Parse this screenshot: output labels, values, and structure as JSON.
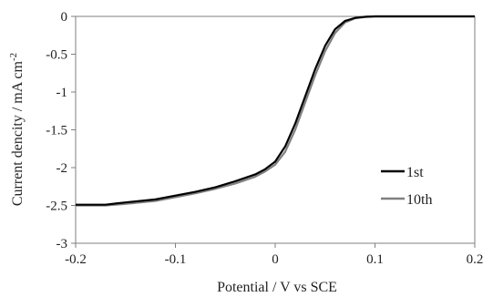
{
  "chart_data": {
    "type": "line",
    "xlabel": "Potential / V vs SCE",
    "ylabel": "Current dencity / mA cm",
    "ylabel_superscript": "-2",
    "xlim": [
      -0.2,
      0.2
    ],
    "ylim": [
      -3,
      0
    ],
    "x_ticks": [
      "-0.2",
      "-0.1",
      "0",
      "0.1",
      "0.2"
    ],
    "y_ticks": [
      "0",
      "-0.5",
      "-1",
      "-1.5",
      "-2",
      "-2.5",
      "-3"
    ],
    "x_tick_values": [
      -0.2,
      -0.1,
      0,
      0.1,
      0.2
    ],
    "y_tick_values": [
      0,
      -0.5,
      -1,
      -1.5,
      -2,
      -2.5,
      -3
    ],
    "grid": false,
    "legend_position": "right",
    "series": [
      {
        "name": "1st",
        "color": "#000000",
        "x": [
          -0.2,
          -0.17,
          -0.15,
          -0.12,
          -0.1,
          -0.08,
          -0.06,
          -0.04,
          -0.02,
          -0.01,
          0.0,
          0.01,
          0.02,
          0.03,
          0.04,
          0.05,
          0.06,
          0.07,
          0.08,
          0.09,
          0.1,
          0.12,
          0.15,
          0.2
        ],
        "y": [
          -2.49,
          -2.49,
          -2.46,
          -2.42,
          -2.37,
          -2.32,
          -2.26,
          -2.18,
          -2.09,
          -2.02,
          -1.92,
          -1.72,
          -1.42,
          -1.06,
          -0.7,
          -0.39,
          -0.17,
          -0.06,
          -0.02,
          -0.005,
          0.0,
          0.0,
          0.0,
          0.0
        ]
      },
      {
        "name": "10th",
        "color": "#808080",
        "x": [
          -0.2,
          -0.17,
          -0.15,
          -0.12,
          -0.1,
          -0.08,
          -0.06,
          -0.04,
          -0.02,
          -0.01,
          0.0,
          0.01,
          0.02,
          0.03,
          0.04,
          0.05,
          0.06,
          0.07,
          0.08,
          0.09,
          0.1,
          0.12,
          0.15,
          0.2
        ],
        "y": [
          -2.5,
          -2.5,
          -2.48,
          -2.44,
          -2.39,
          -2.34,
          -2.28,
          -2.21,
          -2.12,
          -2.05,
          -1.96,
          -1.79,
          -1.5,
          -1.14,
          -0.78,
          -0.46,
          -0.22,
          -0.08,
          -0.025,
          -0.008,
          0.0,
          0.0,
          0.0,
          0.0
        ]
      }
    ]
  }
}
